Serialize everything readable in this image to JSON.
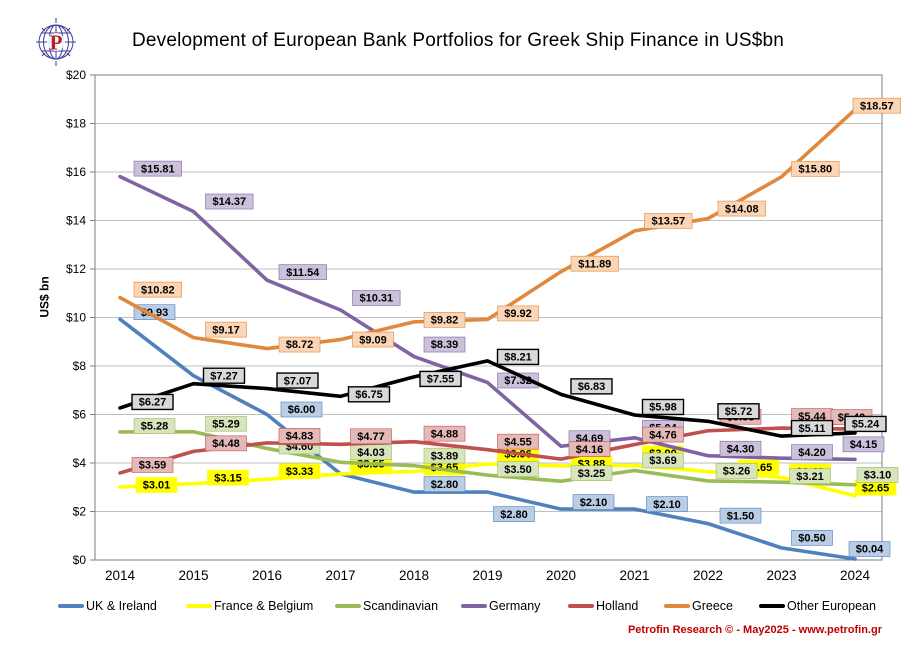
{
  "logo": {
    "letter": "P"
  },
  "footer": {
    "credit": "Petrofin Research © - May2025 - www.petrofin.gr"
  },
  "chart_data": {
    "type": "line",
    "title": "Development of European Bank Portfolios for Greek Ship Finance in US$bn",
    "ylabel": "US$ bn",
    "xlabel": "",
    "ylim": [
      0,
      20
    ],
    "ytick_step": 2,
    "ytick_labels": [
      "$0",
      "$2",
      "$4",
      "$6",
      "$8",
      "$10",
      "$12",
      "$14",
      "$16",
      "$18",
      "$20"
    ],
    "categories": [
      "2014",
      "2015",
      "2016",
      "2017",
      "2018",
      "2019",
      "2020",
      "2021",
      "2022",
      "2023",
      "2024"
    ],
    "grid": true,
    "legend_position": "bottom",
    "series": [
      {
        "name": "UK & Ireland",
        "color": "#4F81BD",
        "label_bg": "#B9CDE5",
        "boxed": false,
        "values": [
          9.93,
          7.6,
          6.0,
          3.55,
          2.8,
          2.8,
          2.1,
          2.1,
          1.5,
          0.5,
          0.04
        ],
        "labels": [
          "$9.93",
          null,
          "$6.00",
          null,
          "$2.80",
          "$2.80",
          "$2.10",
          "$2.10",
          "$1.50",
          "$0.50",
          "$0.04"
        ]
      },
      {
        "name": "France & Belgium",
        "color": "#FFFF00",
        "label_bg": "#FFFF00",
        "boxed": false,
        "values": [
          3.01,
          3.15,
          3.33,
          3.55,
          3.65,
          3.96,
          3.88,
          3.9,
          3.65,
          3.4,
          2.65
        ],
        "labels": [
          "$3.01",
          "$3.15",
          "$3.33",
          "$3.55",
          "$3.65",
          "$3.96",
          "$3.88",
          "$3.90",
          "$3.65",
          "$3.40",
          "$2.65"
        ]
      },
      {
        "name": "Scandinavian",
        "color": "#9BBB59",
        "label_bg": "#D7E4BD",
        "boxed": false,
        "values": [
          5.28,
          5.29,
          4.6,
          4.03,
          3.89,
          3.5,
          3.25,
          3.69,
          3.26,
          3.21,
          3.1
        ],
        "labels": [
          "$5.28",
          "$5.29",
          "$4.60",
          "$4.03",
          "$3.89",
          "$3.50",
          "$3.25",
          "$3.69",
          "$3.26",
          "$3.21",
          "$3.10"
        ]
      },
      {
        "name": "Germany",
        "color": "#8064A2",
        "label_bg": "#CCC1DA",
        "boxed": false,
        "values": [
          15.81,
          14.37,
          11.54,
          10.31,
          8.39,
          7.32,
          4.69,
          5.04,
          4.3,
          4.2,
          4.15
        ],
        "labels": [
          "$15.81",
          "$14.37",
          "$11.54",
          "$10.31",
          "$8.39",
          "$7.32",
          "$4.69",
          "$5.04",
          "$4.30",
          "$4.20",
          "$4.15"
        ]
      },
      {
        "name": "Holland",
        "color": "#C0504D",
        "label_bg": "#E5B9B7",
        "boxed": false,
        "values": [
          3.59,
          4.48,
          4.83,
          4.77,
          4.88,
          4.55,
          4.16,
          4.76,
          5.33,
          5.44,
          5.4
        ],
        "labels": [
          "$3.59",
          "$4.48",
          "$4.83",
          "$4.77",
          "$4.88",
          "$4.55",
          "$4.16",
          "$4.76",
          "$5.33",
          "$5.44",
          "$5.40"
        ]
      },
      {
        "name": "Greece",
        "color": "#E0883C",
        "label_bg": "#FBD5B5",
        "boxed": false,
        "values": [
          10.82,
          9.17,
          8.72,
          9.09,
          9.82,
          9.92,
          11.89,
          13.57,
          14.08,
          15.8,
          18.57
        ],
        "labels": [
          "$10.82",
          "$9.17",
          "$8.72",
          "$9.09",
          "$9.82",
          "$9.92",
          "$11.89",
          "$13.57",
          "$14.08",
          "$15.80",
          "$18.57"
        ]
      },
      {
        "name": "Other European",
        "color": "#000000",
        "label_bg": "#D9D9D9",
        "boxed": true,
        "values": [
          6.27,
          7.27,
          7.07,
          6.75,
          7.55,
          8.21,
          6.83,
          5.98,
          5.72,
          5.11,
          5.24
        ],
        "labels": [
          "$6.27",
          "$7.27",
          "$7.07",
          "$6.75",
          "$7.55",
          "$8.21",
          "$6.83",
          "$5.98",
          "$5.72",
          "$5.11",
          "$5.24"
        ]
      }
    ]
  }
}
